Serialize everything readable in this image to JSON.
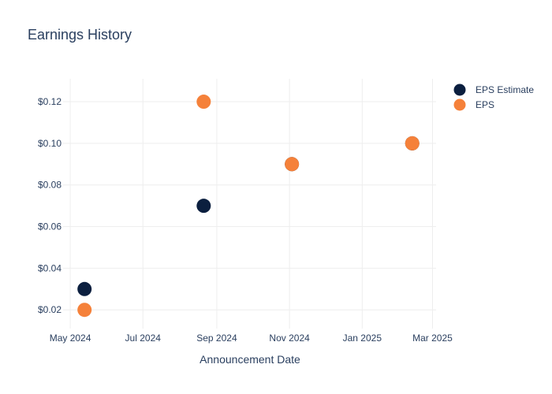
{
  "chart_data": {
    "type": "scatter",
    "title": "Earnings History",
    "xlabel": "Announcement Date",
    "ylabel": "",
    "x_ticks": [
      {
        "date": "2024-05-01",
        "label": "May 2024"
      },
      {
        "date": "2024-07-01",
        "label": "Jul 2024"
      },
      {
        "date": "2024-09-01",
        "label": "Sep 2024"
      },
      {
        "date": "2024-11-01",
        "label": "Nov 2024"
      },
      {
        "date": "2025-01-01",
        "label": "Jan 2025"
      },
      {
        "date": "2025-03-01",
        "label": "Mar 2025"
      }
    ],
    "y_ticks": [
      {
        "value": 0.02,
        "label": "$0.02"
      },
      {
        "value": 0.04,
        "label": "$0.04"
      },
      {
        "value": 0.06,
        "label": "$0.06"
      },
      {
        "value": 0.08,
        "label": "$0.08"
      },
      {
        "value": 0.1,
        "label": "$0.10"
      },
      {
        "value": 0.12,
        "label": "$0.12"
      }
    ],
    "xlim": [
      "2024-04-25",
      "2025-03-04"
    ],
    "ylim": [
      0.011,
      0.131
    ],
    "grid": true,
    "legend": "top-right",
    "series": [
      {
        "name": "EPS Estimate",
        "color": "#0b1f3f",
        "x": [
          "2024-05-13",
          "2024-08-21",
          "2024-11-03",
          "2025-02-12"
        ],
        "y": [
          0.03,
          0.07,
          0.09,
          0.1
        ]
      },
      {
        "name": "EPS",
        "color": "#f5813a",
        "x": [
          "2024-05-13",
          "2024-08-21",
          "2024-11-03",
          "2025-02-12"
        ],
        "y": [
          0.02,
          0.12,
          0.09,
          0.1
        ]
      }
    ]
  }
}
